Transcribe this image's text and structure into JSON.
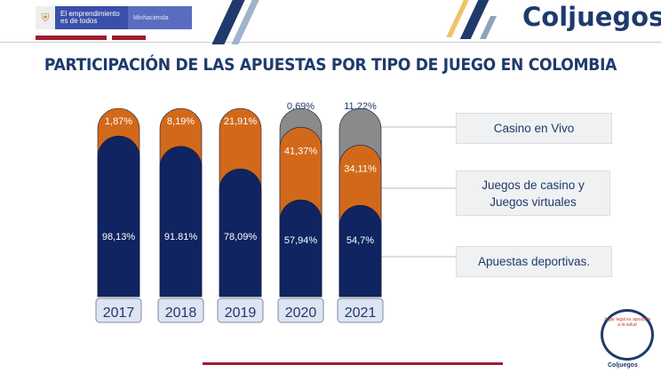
{
  "header": {
    "gov_text": "El emprendimiento es de todos",
    "gov_ministry": "Minhacienda",
    "brand": "Coljuegos"
  },
  "footer": {
    "seal_brand": "Coljuegos",
    "seal_text": "Jugar legal es apostarle a la salud"
  },
  "chart_data": {
    "type": "bar",
    "stacked": true,
    "title": "PARTICIPACIÓN DE LAS APUESTAS POR TIPO DE JUEGO EN COLOMBIA",
    "categories": [
      "2017",
      "2018",
      "2019",
      "2020",
      "2021"
    ],
    "series": [
      {
        "name": "Apuestas deportivas.",
        "color": "#0f2461",
        "values": [
          98.13,
          91.81,
          78.09,
          57.94,
          54.7
        ],
        "labels": [
          "98,13%",
          "91.81%",
          "78,09%",
          "57,94%",
          "54,7%"
        ]
      },
      {
        "name": "Juegos de casino y Juegos virtuales",
        "color": "#d2691a",
        "values": [
          1.87,
          8.19,
          21.91,
          41.37,
          34.11
        ],
        "labels": [
          "1,87%",
          "8,19%",
          "21,91%",
          "41,37%",
          "34,11%"
        ]
      },
      {
        "name": "Casino en Vivo",
        "color": "#8a8a8a",
        "values": [
          null,
          null,
          null,
          0.69,
          11.22
        ],
        "labels": [
          "",
          "",
          "",
          "0,69%",
          "11,22%"
        ]
      }
    ],
    "legend_placement": "right"
  }
}
